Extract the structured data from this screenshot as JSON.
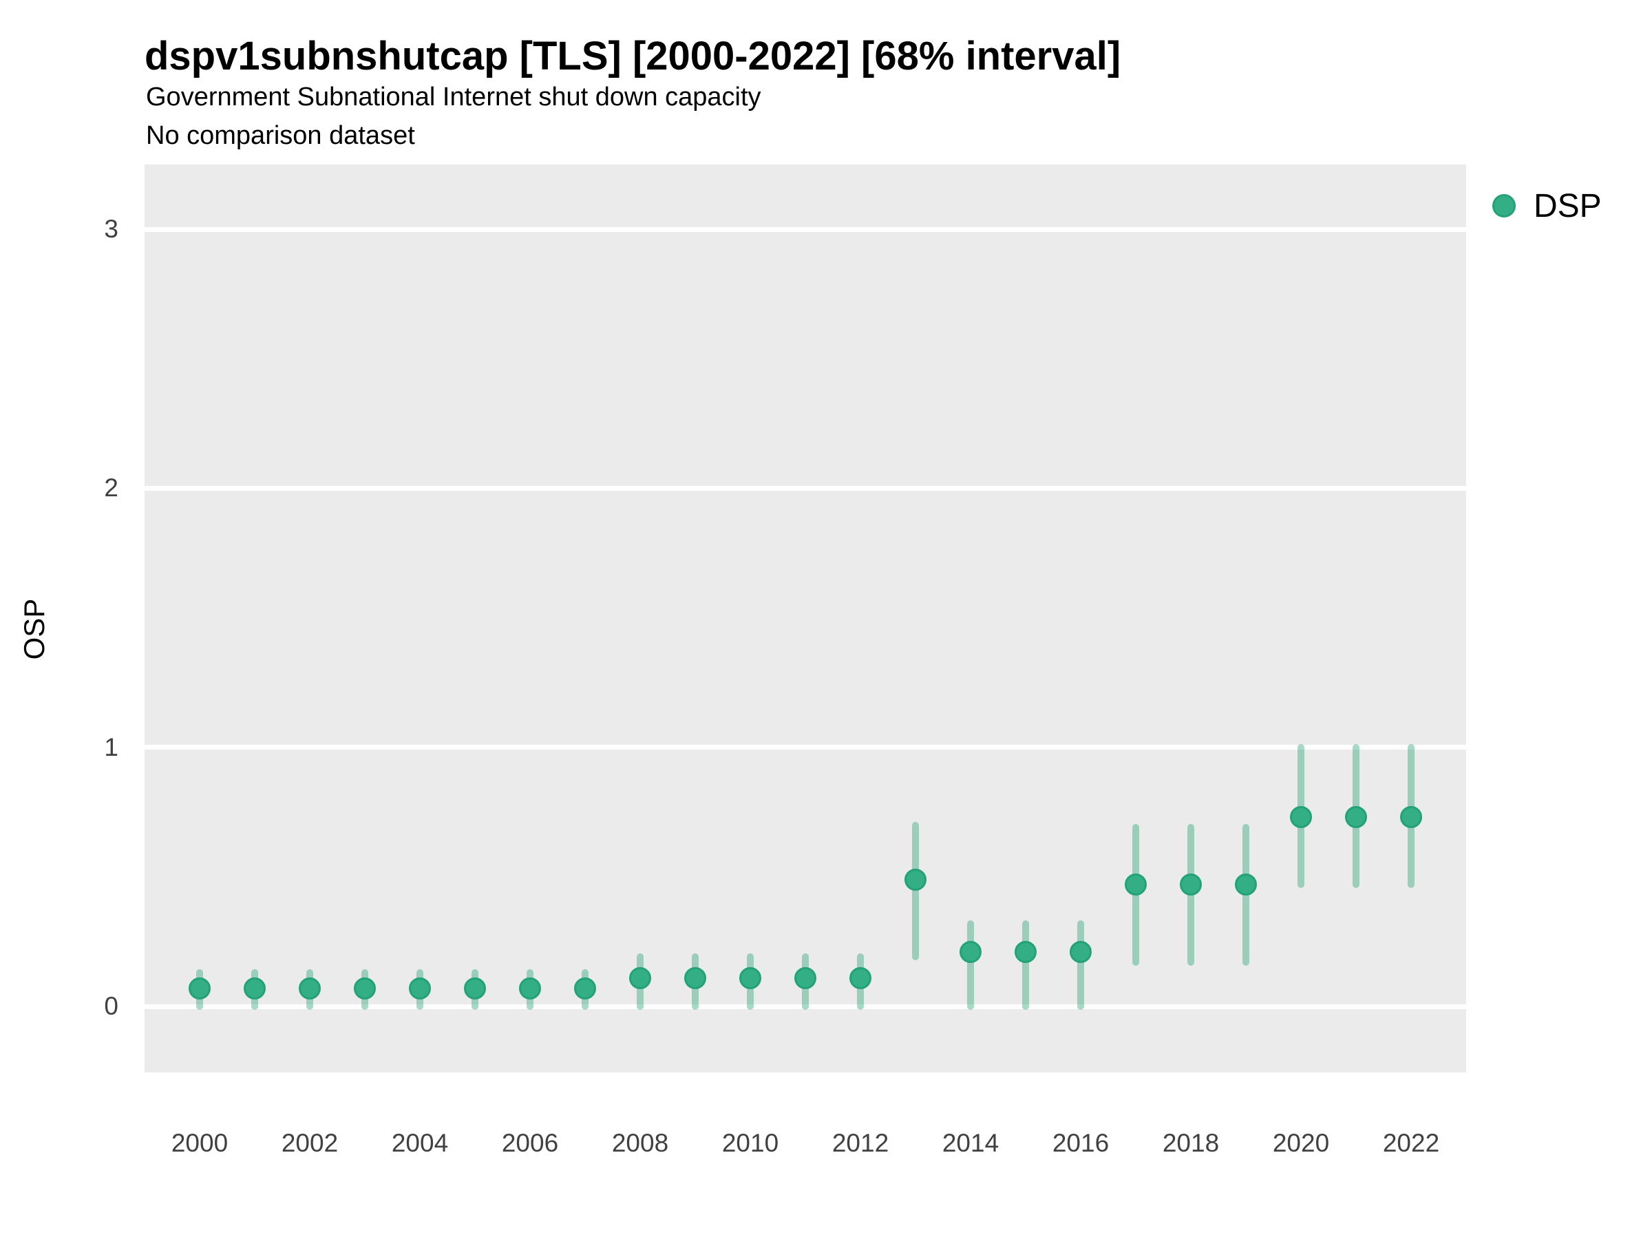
{
  "figure": {
    "title": "dspv1subnshutcap [TLS] [2000-2022] [68% interval]",
    "subtitle": "Government Subnational Internet shut down capacity",
    "note": "No comparison dataset"
  },
  "axes": {
    "y_label": "OSP",
    "x_label": ""
  },
  "legend": {
    "position": "right",
    "items": [
      {
        "label": "DSP",
        "marker": "circle-icon",
        "marker_color": "#2FAC81"
      }
    ]
  },
  "chart_data": {
    "type": "scatter",
    "variant": "pointrange",
    "title": "dspv1subnshutcap [TLS] [2000-2022] [68% interval]",
    "subtitle": "Government Subnational Internet shut down capacity",
    "annotation": "No comparison dataset",
    "interval_level": "68%",
    "xlabel": "",
    "ylabel": "OSP",
    "x": [
      2000,
      2001,
      2002,
      2003,
      2004,
      2005,
      2006,
      2007,
      2008,
      2009,
      2010,
      2011,
      2012,
      2013,
      2014,
      2015,
      2016,
      2017,
      2018,
      2019,
      2020,
      2021,
      2022
    ],
    "series": [
      {
        "name": "DSP",
        "values": [
          0.07,
          0.07,
          0.07,
          0.07,
          0.07,
          0.07,
          0.07,
          0.07,
          0.11,
          0.11,
          0.11,
          0.11,
          0.11,
          0.49,
          0.21,
          0.21,
          0.21,
          0.47,
          0.47,
          0.47,
          0.73,
          0.73,
          0.73
        ],
        "lower_68": [
          0.0,
          0.0,
          0.0,
          0.0,
          0.0,
          0.0,
          0.0,
          0.0,
          0.0,
          0.0,
          0.0,
          0.0,
          0.0,
          0.19,
          0.0,
          0.0,
          0.0,
          0.17,
          0.17,
          0.17,
          0.47,
          0.47,
          0.47
        ],
        "upper_68": [
          0.13,
          0.13,
          0.13,
          0.13,
          0.13,
          0.13,
          0.13,
          0.13,
          0.19,
          0.19,
          0.19,
          0.19,
          0.19,
          0.7,
          0.32,
          0.32,
          0.32,
          0.69,
          0.69,
          0.69,
          1.0,
          1.0,
          1.0
        ]
      }
    ],
    "xticks": [
      2000,
      2002,
      2004,
      2006,
      2008,
      2010,
      2012,
      2014,
      2016,
      2018,
      2020,
      2022
    ],
    "yticks": [
      0,
      1,
      2,
      3
    ],
    "xlim": [
      1999,
      2023
    ],
    "ylim": [
      -0.26,
      3.25
    ],
    "grid": "horizontal major gridlines only, white on grey panel",
    "legend_position": "right",
    "colors": {
      "point_fill": "#34AF85",
      "point_border": "#24A277",
      "interval_bar": "rgba(44,167,122,0.42)",
      "panel_background": "#EBEBEB",
      "gridline": "#FFFFFF",
      "tick_text": "#404040",
      "title_text": "#000000"
    }
  }
}
